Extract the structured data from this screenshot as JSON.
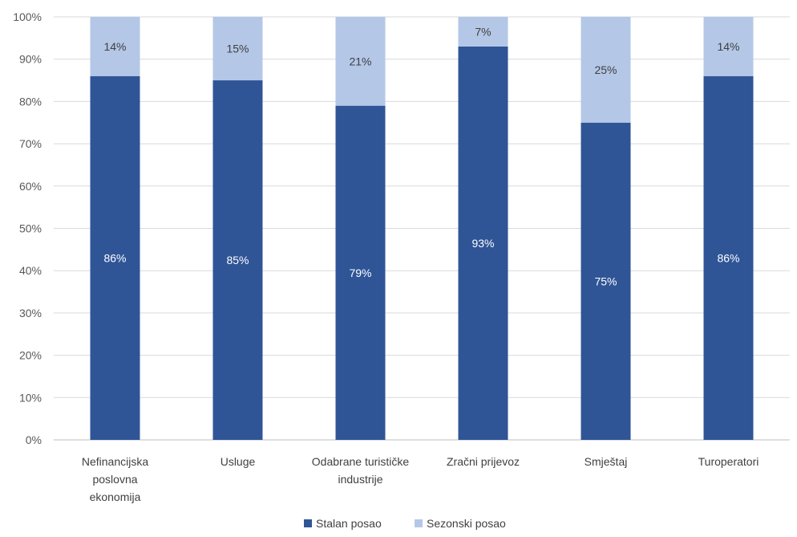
{
  "chart_data": {
    "type": "bar",
    "stacked": true,
    "categories": [
      [
        "Nefinancijska",
        "poslovna",
        "ekonomija"
      ],
      [
        "Usluge"
      ],
      [
        "Odabrane turističke",
        "industrije"
      ],
      [
        "Zračni prijevoz"
      ],
      [
        "Smještaj"
      ],
      [
        "Turoperatori"
      ]
    ],
    "series": [
      {
        "name": "Stalan posao",
        "values": [
          86,
          85,
          79,
          93,
          75,
          86
        ],
        "color": "#2F5597",
        "label_color": "#ffffff"
      },
      {
        "name": "Sezonski posao",
        "values": [
          14,
          15,
          21,
          7,
          25,
          14
        ],
        "color": "#B4C7E7",
        "label_color": "#404040"
      }
    ],
    "y_ticks": [
      "0%",
      "10%",
      "20%",
      "30%",
      "40%",
      "50%",
      "60%",
      "70%",
      "80%",
      "90%",
      "100%"
    ],
    "ylim": [
      0,
      100
    ],
    "value_suffix": "%",
    "grid": true,
    "legend_position": "bottom"
  }
}
